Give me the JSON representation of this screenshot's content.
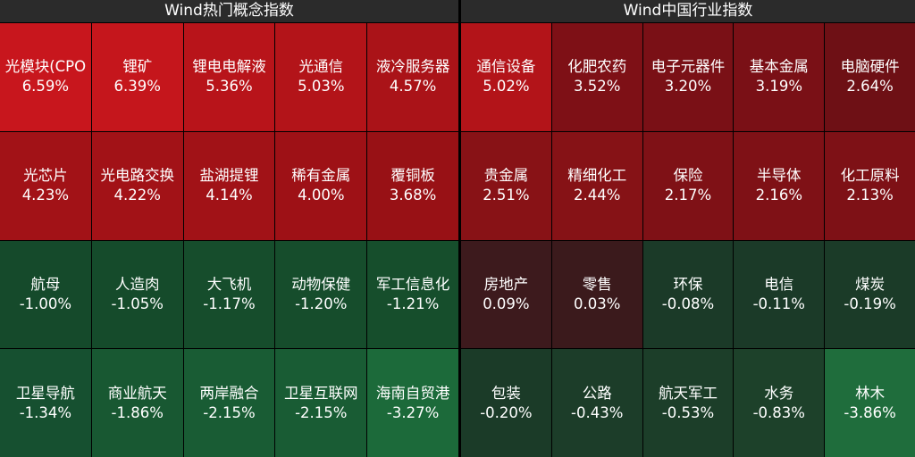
{
  "panels": [
    {
      "title": "Wind热门概念指数",
      "tiles": [
        {
          "name": "光模块(CPO",
          "value": "6.59%",
          "color": "#c8161d"
        },
        {
          "name": "锂矿",
          "value": "6.39%",
          "color": "#c5161c"
        },
        {
          "name": "锂电电解液",
          "value": "5.36%",
          "color": "#b8141a"
        },
        {
          "name": "光通信",
          "value": "5.03%",
          "color": "#b31419"
        },
        {
          "name": "液冷服务器",
          "value": "4.57%",
          "color": "#aa1318"
        },
        {
          "name": "光芯片",
          "value": "4.23%",
          "color": "#a21217"
        },
        {
          "name": "光电路交换",
          "value": "4.22%",
          "color": "#a21217"
        },
        {
          "name": "盐湖提锂",
          "value": "4.14%",
          "color": "#a11217"
        },
        {
          "name": "稀有金属",
          "value": "4.00%",
          "color": "#9e1116"
        },
        {
          "name": "覆铜板",
          "value": "3.68%",
          "color": "#981115"
        },
        {
          "name": "航母",
          "value": "-1.00%",
          "color": "#154a2b"
        },
        {
          "name": "人造肉",
          "value": "-1.05%",
          "color": "#154b2b"
        },
        {
          "name": "大飞机",
          "value": "-1.17%",
          "color": "#164d2c"
        },
        {
          "name": "动物保健",
          "value": "-1.20%",
          "color": "#164d2c"
        },
        {
          "name": "军工信息化",
          "value": "-1.21%",
          "color": "#164e2c"
        },
        {
          "name": "卫星导航",
          "value": "-1.34%",
          "color": "#165030"
        },
        {
          "name": "商业航天",
          "value": "-1.86%",
          "color": "#185832"
        },
        {
          "name": "两岸融合",
          "value": "-2.15%",
          "color": "#195c34"
        },
        {
          "name": "卫星互联网",
          "value": "-2.15%",
          "color": "#195c34"
        },
        {
          "name": "海南自贸港",
          "value": "-3.27%",
          "color": "#1c6a3a"
        }
      ]
    },
    {
      "title": "Wind中国行业指数",
      "tiles": [
        {
          "name": "通信设备",
          "value": "5.02%",
          "color": "#b31419"
        },
        {
          "name": "化肥农药",
          "value": "3.52%",
          "color": "#7e1016"
        },
        {
          "name": "电子元器件",
          "value": "3.20%",
          "color": "#7a1016"
        },
        {
          "name": "基本金属",
          "value": "3.19%",
          "color": "#7a1016"
        },
        {
          "name": "电脑硬件",
          "value": "2.64%",
          "color": "#6e1015"
        },
        {
          "name": "贵金属",
          "value": "2.51%",
          "color": "#881216"
        },
        {
          "name": "精细化工",
          "value": "2.44%",
          "color": "#861216"
        },
        {
          "name": "保险",
          "value": "2.17%",
          "color": "#7f1116"
        },
        {
          "name": "半导体",
          "value": "2.16%",
          "color": "#7f1116"
        },
        {
          "name": "化工原料",
          "value": "2.13%",
          "color": "#7e1116"
        },
        {
          "name": "房地产",
          "value": "0.09%",
          "color": "#3d1a1d"
        },
        {
          "name": "零售",
          "value": "0.03%",
          "color": "#3b1a1c"
        },
        {
          "name": "环保",
          "value": "-0.08%",
          "color": "#1b3a28"
        },
        {
          "name": "电信",
          "value": "-0.11%",
          "color": "#1b3a28"
        },
        {
          "name": "煤炭",
          "value": "-0.19%",
          "color": "#1b3b28"
        },
        {
          "name": "包装",
          "value": "-0.20%",
          "color": "#1b3b28"
        },
        {
          "name": "公路",
          "value": "-0.43%",
          "color": "#1c3d29"
        },
        {
          "name": "航天军工",
          "value": "-0.53%",
          "color": "#1c3e29"
        },
        {
          "name": "水务",
          "value": "-0.83%",
          "color": "#1d412a"
        },
        {
          "name": "林木",
          "value": "-3.86%",
          "color": "#1f6d3c"
        }
      ]
    }
  ]
}
